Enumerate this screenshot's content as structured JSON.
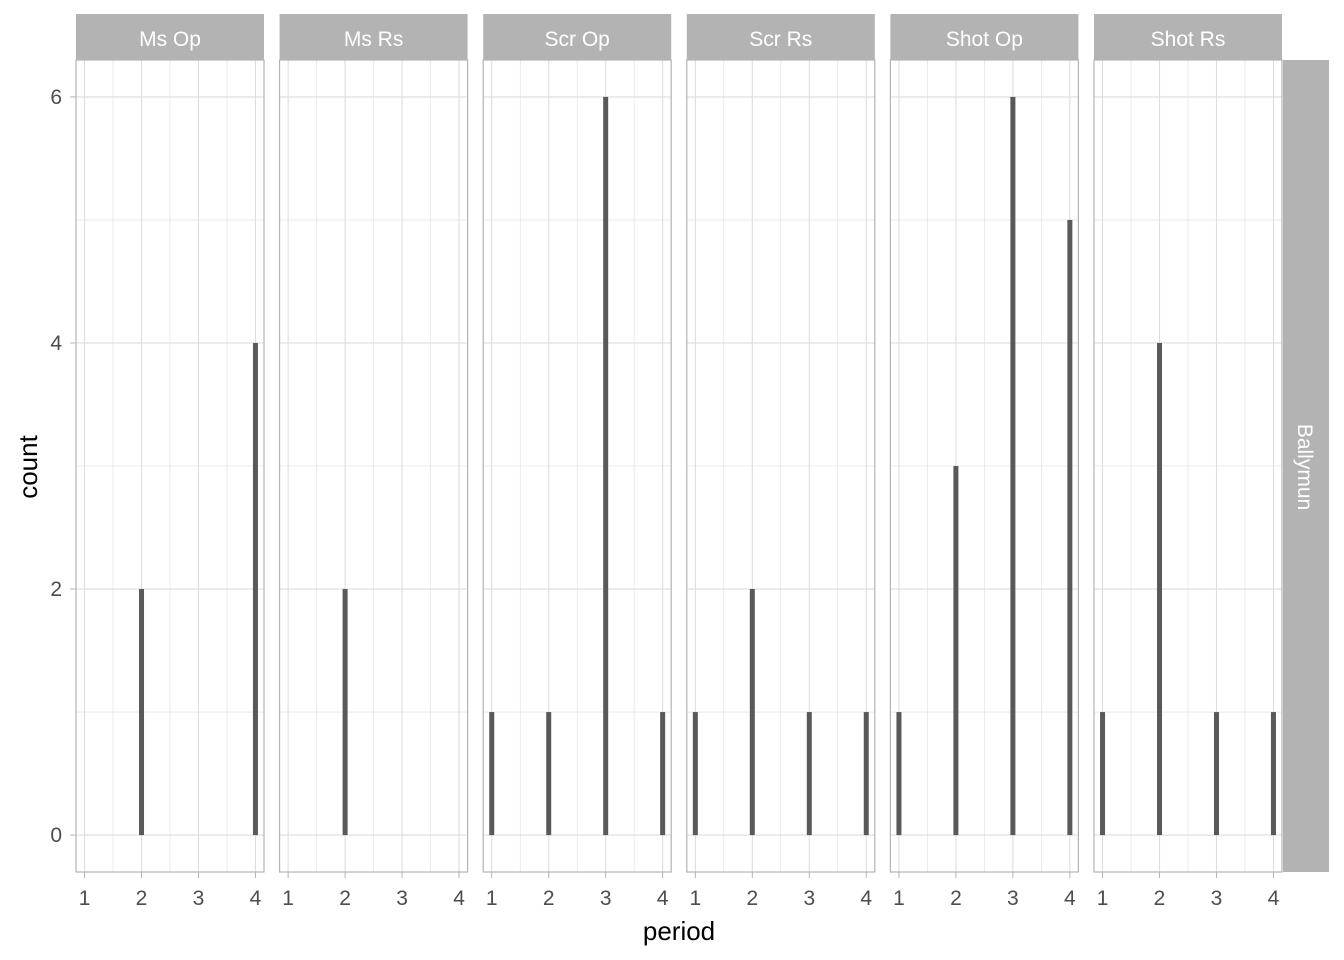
{
  "chart_data": {
    "type": "bar",
    "xlabel": "period",
    "ylabel": "count",
    "row_strip": "Ballymun",
    "x_ticks": [
      "1",
      "2",
      "3",
      "4"
    ],
    "xlim": [
      0.85,
      4.15
    ],
    "y_ticks": [
      0,
      2,
      4,
      6
    ],
    "ylim": [
      -0.3,
      6.3
    ],
    "grid": true,
    "facets": [
      {
        "name": "Ms Op",
        "x": [
          2,
          4
        ],
        "values": [
          2,
          4
        ]
      },
      {
        "name": "Ms Rs",
        "x": [
          2
        ],
        "values": [
          2
        ]
      },
      {
        "name": "Scr Op",
        "x": [
          1,
          2,
          3,
          4
        ],
        "values": [
          1,
          1,
          6,
          1
        ]
      },
      {
        "name": "Scr Rs",
        "x": [
          1,
          2,
          3,
          4
        ],
        "values": [
          1,
          2,
          1,
          1
        ]
      },
      {
        "name": "Shot Op",
        "x": [
          1,
          2,
          3,
          4
        ],
        "values": [
          1,
          3,
          6,
          5
        ]
      },
      {
        "name": "Shot Rs",
        "x": [
          1,
          2,
          3,
          4
        ],
        "values": [
          1,
          4,
          1,
          1
        ]
      }
    ],
    "colors": {
      "bar": "#595959",
      "strip": "#b3b3b3",
      "grid": "#dedede",
      "panel_border": "#b3b3b3"
    }
  }
}
